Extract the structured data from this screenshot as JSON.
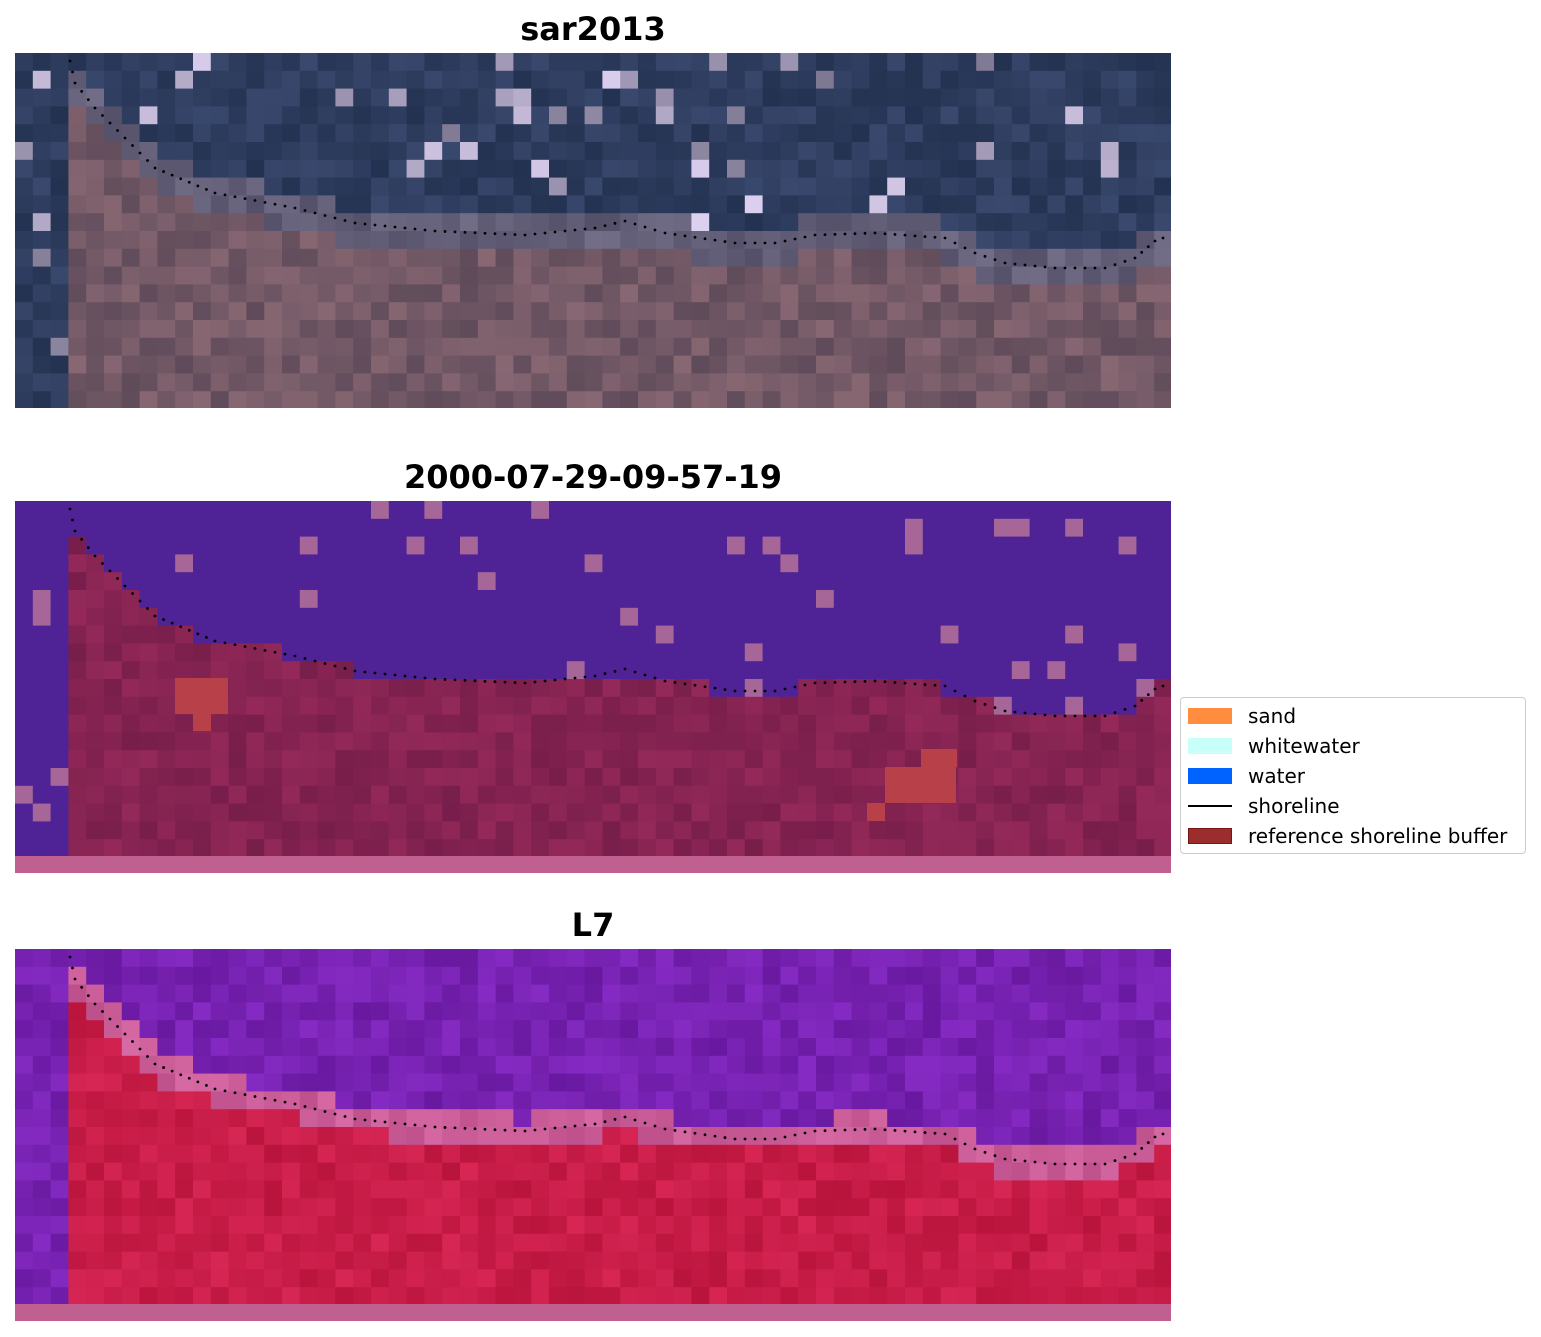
{
  "panels": [
    {
      "title": "sar2013",
      "kind": "rgb"
    },
    {
      "title": "2000-07-29-09-57-19",
      "kind": "classified"
    },
    {
      "title": "L7",
      "kind": "index"
    }
  ],
  "legend": {
    "items": [
      {
        "label": "sand",
        "color": "#ff8c3f",
        "type": "patch"
      },
      {
        "label": "whitewater",
        "color": "#c9fff9",
        "type": "patch"
      },
      {
        "label": "water",
        "color": "#0062ff",
        "type": "patch"
      },
      {
        "label": "shoreline",
        "color": "#000000",
        "type": "line"
      },
      {
        "label": "reference shoreline buffer",
        "color": "#9b2d2d",
        "edge": "#7a1515",
        "type": "patch"
      }
    ]
  },
  "colors": {
    "water_overlay": "#4f2396",
    "buffer_overlay": "#b84048",
    "bottom_band": "#c06090",
    "shoreline_dots": "#000000"
  }
}
